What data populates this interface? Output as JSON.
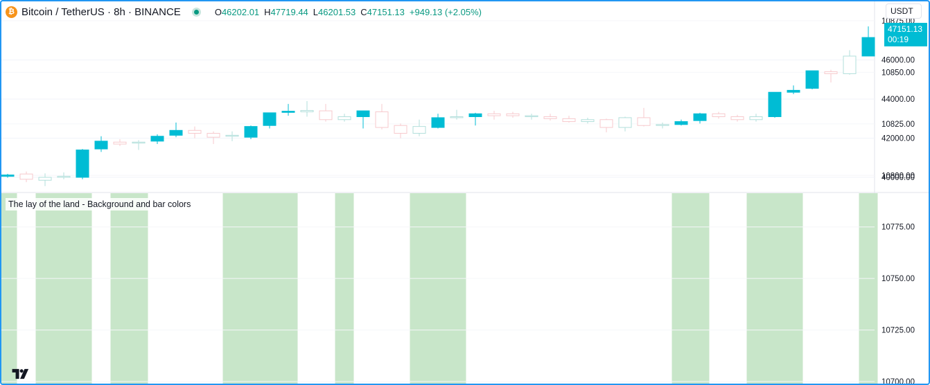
{
  "header": {
    "coin_icon": "bitcoin-icon",
    "coin_glyph": "₿",
    "symbol": "Bitcoin / TetherUS · 8h · BINANCE",
    "market_status_icon": "market-open-dot-icon",
    "ohlc": {
      "o_label": "O",
      "o_value": "46202.01",
      "h_label": "H",
      "h_value": "47719.44",
      "l_label": "L",
      "l_value": "46201.53",
      "c_label": "C",
      "c_value": "47151.13",
      "change": "+949.13 (+2.05%)"
    }
  },
  "currency_button": "USDT",
  "last_price": {
    "price": "47151.13",
    "countdown": "00:19"
  },
  "indicator_pane": {
    "title": "The lay of the land - Background and bar colors"
  },
  "logo": "tradingview-logo-icon",
  "colors": {
    "up": "#00bcd4",
    "down_outline": "#f7c9cd",
    "neutral_outline": "#b2dfdb",
    "background_highlight": "#c8e6c9",
    "frame_accent": "#2196f3"
  },
  "chart_data": [
    {
      "type": "candlestick",
      "title": "Bitcoin / TetherUS · 8h · BINANCE",
      "y_axis_ticks": [
        "46000.00",
        "44000.00",
        "42000.00",
        "40000.00"
      ],
      "ylim": [
        39400,
        47900
      ],
      "candles": [
        {
          "o": 40050,
          "h": 40180,
          "l": 39980,
          "c": 40120,
          "style": "up"
        },
        {
          "o": 40170,
          "h": 40300,
          "l": 39750,
          "c": 39900,
          "style": "down"
        },
        {
          "o": 39850,
          "h": 40200,
          "l": 39550,
          "c": 40000,
          "style": "neutral"
        },
        {
          "o": 40000,
          "h": 40250,
          "l": 39900,
          "c": 40050,
          "style": "neutral"
        },
        {
          "o": 40000,
          "h": 41450,
          "l": 39900,
          "c": 41400,
          "style": "up"
        },
        {
          "o": 41450,
          "h": 42100,
          "l": 41300,
          "c": 41850,
          "style": "up"
        },
        {
          "o": 41800,
          "h": 41950,
          "l": 41600,
          "c": 41700,
          "style": "down"
        },
        {
          "o": 41750,
          "h": 41900,
          "l": 41400,
          "c": 41800,
          "style": "neutral"
        },
        {
          "o": 41850,
          "h": 42200,
          "l": 41700,
          "c": 42100,
          "style": "up"
        },
        {
          "o": 42150,
          "h": 42800,
          "l": 42050,
          "c": 42400,
          "style": "up"
        },
        {
          "o": 42400,
          "h": 42600,
          "l": 42000,
          "c": 42250,
          "style": "down"
        },
        {
          "o": 42250,
          "h": 42350,
          "l": 41700,
          "c": 42050,
          "style": "down"
        },
        {
          "o": 42100,
          "h": 42350,
          "l": 41850,
          "c": 42150,
          "style": "neutral"
        },
        {
          "o": 42050,
          "h": 42650,
          "l": 41950,
          "c": 42600,
          "style": "up"
        },
        {
          "o": 42650,
          "h": 43300,
          "l": 42500,
          "c": 43300,
          "style": "up"
        },
        {
          "o": 43320,
          "h": 43750,
          "l": 43150,
          "c": 43380,
          "style": "up"
        },
        {
          "o": 43350,
          "h": 43900,
          "l": 43100,
          "c": 43420,
          "style": "neutral"
        },
        {
          "o": 43400,
          "h": 43750,
          "l": 42850,
          "c": 42950,
          "style": "down"
        },
        {
          "o": 42950,
          "h": 43250,
          "l": 42850,
          "c": 43100,
          "style": "neutral"
        },
        {
          "o": 43100,
          "h": 43400,
          "l": 42500,
          "c": 43400,
          "style": "up"
        },
        {
          "o": 43350,
          "h": 43750,
          "l": 42450,
          "c": 42550,
          "style": "down"
        },
        {
          "o": 42650,
          "h": 42750,
          "l": 42000,
          "c": 42250,
          "style": "down"
        },
        {
          "o": 42250,
          "h": 42950,
          "l": 42100,
          "c": 42600,
          "style": "neutral"
        },
        {
          "o": 42550,
          "h": 43250,
          "l": 42500,
          "c": 43050,
          "style": "up"
        },
        {
          "o": 43050,
          "h": 43450,
          "l": 42950,
          "c": 43100,
          "style": "neutral"
        },
        {
          "o": 43100,
          "h": 43300,
          "l": 42650,
          "c": 43250,
          "style": "up"
        },
        {
          "o": 43250,
          "h": 43400,
          "l": 42950,
          "c": 43150,
          "style": "down"
        },
        {
          "o": 43150,
          "h": 43350,
          "l": 43050,
          "c": 43250,
          "style": "down"
        },
        {
          "o": 43150,
          "h": 43250,
          "l": 42950,
          "c": 43100,
          "style": "neutral"
        },
        {
          "o": 43100,
          "h": 43250,
          "l": 42900,
          "c": 43000,
          "style": "down"
        },
        {
          "o": 43000,
          "h": 43150,
          "l": 42800,
          "c": 42850,
          "style": "down"
        },
        {
          "o": 42850,
          "h": 43050,
          "l": 42750,
          "c": 42950,
          "style": "neutral"
        },
        {
          "o": 42950,
          "h": 43000,
          "l": 42300,
          "c": 42550,
          "style": "down"
        },
        {
          "o": 42550,
          "h": 43100,
          "l": 42350,
          "c": 43050,
          "style": "neutral"
        },
        {
          "o": 43050,
          "h": 43550,
          "l": 42600,
          "c": 42650,
          "style": "down"
        },
        {
          "o": 42650,
          "h": 42800,
          "l": 42500,
          "c": 42700,
          "style": "neutral"
        },
        {
          "o": 42700,
          "h": 42950,
          "l": 42650,
          "c": 42850,
          "style": "up"
        },
        {
          "o": 42900,
          "h": 43300,
          "l": 42750,
          "c": 43250,
          "style": "up"
        },
        {
          "o": 43250,
          "h": 43350,
          "l": 43000,
          "c": 43100,
          "style": "down"
        },
        {
          "o": 43100,
          "h": 43200,
          "l": 42850,
          "c": 42950,
          "style": "down"
        },
        {
          "o": 42950,
          "h": 43250,
          "l": 42850,
          "c": 43100,
          "style": "neutral"
        },
        {
          "o": 43100,
          "h": 44350,
          "l": 43050,
          "c": 44350,
          "style": "up"
        },
        {
          "o": 44350,
          "h": 44700,
          "l": 44250,
          "c": 44450,
          "style": "up"
        },
        {
          "o": 44550,
          "h": 45450,
          "l": 44500,
          "c": 45450,
          "style": "up"
        },
        {
          "o": 45300,
          "h": 45500,
          "l": 44850,
          "c": 45400,
          "style": "down"
        },
        {
          "o": 45300,
          "h": 46500,
          "l": 45250,
          "c": 46200,
          "style": "neutral"
        },
        {
          "o": 46202.01,
          "h": 47719.44,
          "l": 46201.53,
          "c": 47151.13,
          "style": "up"
        }
      ]
    },
    {
      "type": "area",
      "title": "The lay of the land - Background and bar colors",
      "y_axis_ticks": [
        "10875.00",
        "10850.00",
        "10825.00",
        "10800.00",
        "10775.00",
        "10750.00",
        "10725.00",
        "10700.00"
      ],
      "background_on": [
        1,
        0,
        1,
        1,
        1,
        0,
        1,
        1,
        0,
        0,
        0,
        0,
        1,
        1,
        1,
        1,
        0,
        0,
        1,
        0,
        0,
        0,
        1,
        1,
        1,
        0,
        0,
        0,
        0,
        0,
        0,
        0,
        0,
        0,
        0,
        0,
        1,
        1,
        0,
        0,
        1,
        1,
        1,
        0,
        0,
        0,
        1
      ]
    }
  ]
}
